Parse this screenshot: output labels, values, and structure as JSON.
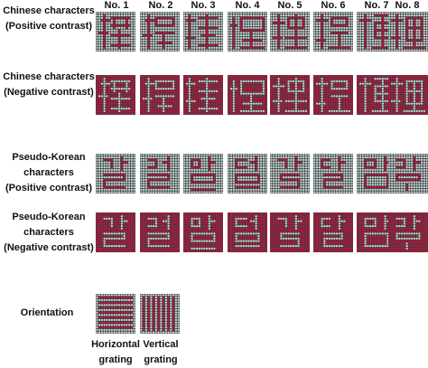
{
  "column_headers": [
    "No. 1",
    "No. 2",
    "No. 3",
    "No. 4",
    "No. 5",
    "No. 6",
    "No. 7",
    "No. 8"
  ],
  "rows": [
    {
      "label_lines": [
        "Chinese characters",
        "(Positive contrast)"
      ],
      "contrast": "positive",
      "set": "chinese"
    },
    {
      "label_lines": [
        "Chinese characters",
        "(Negative contrast)"
      ],
      "contrast": "negative",
      "set": "chinese"
    },
    {
      "label_lines": [
        "Pseudo-Korean",
        "characters",
        "(Positive contrast)"
      ],
      "contrast": "positive",
      "set": "korean"
    },
    {
      "label_lines": [
        "Pseudo-Korean",
        "characters",
        "(Negative contrast)"
      ],
      "contrast": "negative",
      "set": "korean"
    }
  ],
  "orientation": {
    "label": "Orientation",
    "stimuli": [
      {
        "caption_lines": [
          "Horizontal",
          "grating"
        ],
        "kind": "horizontal"
      },
      {
        "caption_lines": [
          "Vertical",
          "grating"
        ],
        "kind": "vertical"
      }
    ]
  },
  "colors": {
    "pixel_light": "#c9d8d6",
    "pixel_red": "#c4123a",
    "background_dark": "#3a3e40"
  }
}
